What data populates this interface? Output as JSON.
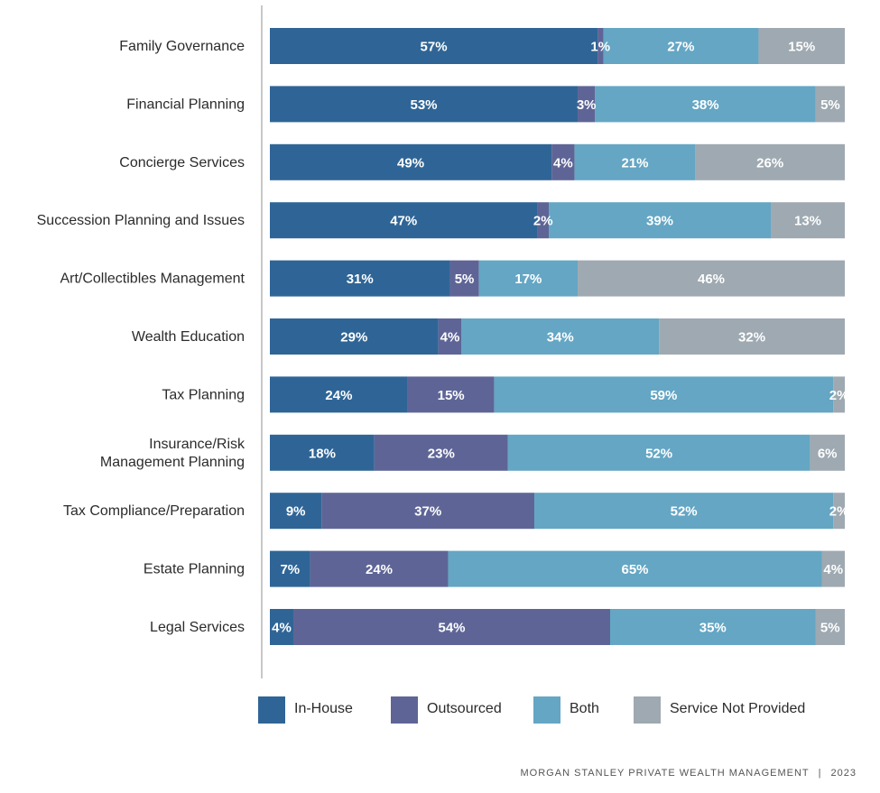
{
  "chart_data": {
    "type": "bar",
    "orientation": "horizontal",
    "stacked": true,
    "title": "",
    "xlabel": "",
    "ylabel": "",
    "categories": [
      "Family Governance",
      "Financial Planning",
      "Concierge Services",
      "Succession Planning and Issues",
      "Art/Collectibles Management",
      "Wealth Education",
      "Tax Planning",
      "Insurance/Risk Management Planning",
      "Tax Compliance/Preparation",
      "Estate Planning",
      "Legal Services"
    ],
    "series": [
      {
        "name": "In-House",
        "color": "#2f6596",
        "values": [
          57,
          53,
          49,
          47,
          31,
          29,
          24,
          18,
          9,
          7,
          4
        ]
      },
      {
        "name": "Outsourced",
        "color": "#5e6596",
        "values": [
          1,
          3,
          4,
          2,
          5,
          4,
          15,
          23,
          37,
          24,
          54
        ]
      },
      {
        "name": "Both",
        "color": "#64a6c4",
        "values": [
          27,
          38,
          21,
          39,
          17,
          34,
          59,
          52,
          52,
          65,
          35
        ]
      },
      {
        "name": "Service Not Provided",
        "color": "#9ea9b1",
        "values": [
          15,
          5,
          26,
          13,
          46,
          32,
          2,
          6,
          2,
          4,
          5
        ]
      }
    ],
    "value_suffix": "%",
    "legend_position": "bottom",
    "grid": false
  },
  "footer": {
    "brand": "MORGAN STANLEY PRIVATE WEALTH MANAGEMENT",
    "separator": "|",
    "year": "2023"
  }
}
